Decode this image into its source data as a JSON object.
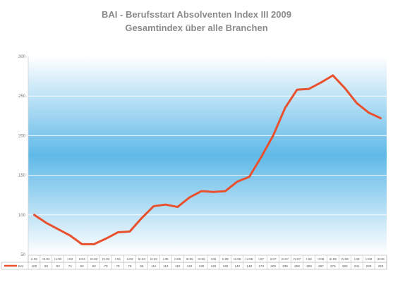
{
  "header": {
    "title": "BAI - Berufsstart Absolventen Index III 2009",
    "subtitle": "Gesamtindex über alle Branchen"
  },
  "colors": {
    "line": "#e8502e",
    "band": "#5fb9e8",
    "band_edge": "#ffffff",
    "grid": "#ffffff",
    "table_border": "#b0b0b0"
  },
  "chart_data": {
    "type": "line",
    "title": "BAI - Berufsstart Absolventen Index III 2009",
    "subtitle": "Gesamtindex über alle Branchen",
    "ylim": [
      50,
      300
    ],
    "yticks": [
      50,
      100,
      150,
      200,
      250,
      300
    ],
    "grid": true,
    "legend_position": "table-left",
    "categories": [
      "II.02",
      "III.02",
      "IV.02",
      "I.03",
      "II.03",
      "III.03",
      "IV.03",
      "I.04",
      "II.04",
      "III.04",
      "IV.04",
      "I.05",
      "II.05",
      "III.05",
      "IV.05",
      "I.06",
      "II.06",
      "III.06",
      "IV.06",
      "I.07",
      "II.07",
      "III.07",
      "IV.07",
      "I.08",
      "II.08",
      "III.08",
      "IV.08",
      "I.09",
      "II.09",
      "III.09"
    ],
    "series": [
      {
        "name": "BAI",
        "values": [
          100,
          90,
          82,
          74,
          63,
          63,
          70,
          78,
          79,
          96,
          111,
          113,
          110,
          122,
          130,
          129,
          130,
          142,
          148,
          173,
          200,
          235,
          258,
          259,
          267,
          276,
          260,
          241,
          229,
          222
        ]
      }
    ]
  }
}
